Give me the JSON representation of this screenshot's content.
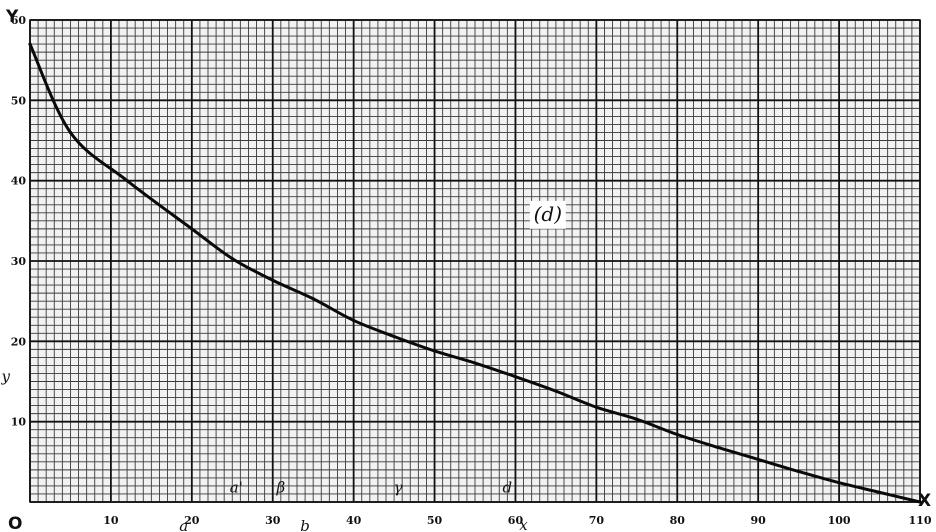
{
  "chart_data": {
    "type": "line",
    "title": "",
    "xlabel": "X",
    "ylabel": "Y",
    "origin_label": "O",
    "xlim": [
      0,
      110
    ],
    "ylim": [
      0,
      60
    ],
    "x_ticks": [
      "10",
      "20",
      "30",
      "40",
      "50",
      "60",
      "70",
      "80",
      "90",
      "100",
      "110"
    ],
    "y_ticks": [
      "10",
      "20",
      "30",
      "40",
      "50",
      "60"
    ],
    "grid": true,
    "series": [
      {
        "x": [
          0,
          5,
          12,
          20,
          25,
          30,
          35,
          40,
          45,
          50,
          55,
          60,
          65,
          70,
          75,
          80,
          85,
          90,
          95,
          100,
          105,
          110
        ],
        "y": [
          57,
          46,
          40,
          34,
          30.3,
          27.6,
          25.3,
          22.6,
          20.6,
          18.8,
          17.3,
          15.6,
          13.8,
          11.8,
          10.3,
          8.4,
          6.8,
          5.3,
          3.8,
          2.4,
          1.2,
          0
        ]
      }
    ],
    "annotations": [
      {
        "text": "(d)",
        "x": 64,
        "y": 35
      },
      {
        "text": "y",
        "x": -3,
        "y": 15
      },
      {
        "text": "x",
        "x": 61,
        "y": -3.5
      },
      {
        "text": "a",
        "x": 19,
        "y": -3.6
      },
      {
        "text": "b",
        "x": 34,
        "y": -3.6
      },
      {
        "text": "a'",
        "x": 25.5,
        "y": 1.2
      },
      {
        "text": "β",
        "x": 31,
        "y": 1.2
      },
      {
        "text": "γ",
        "x": 45.5,
        "y": 1.2
      },
      {
        "text": "d",
        "x": 59,
        "y": 1.2
      }
    ]
  }
}
